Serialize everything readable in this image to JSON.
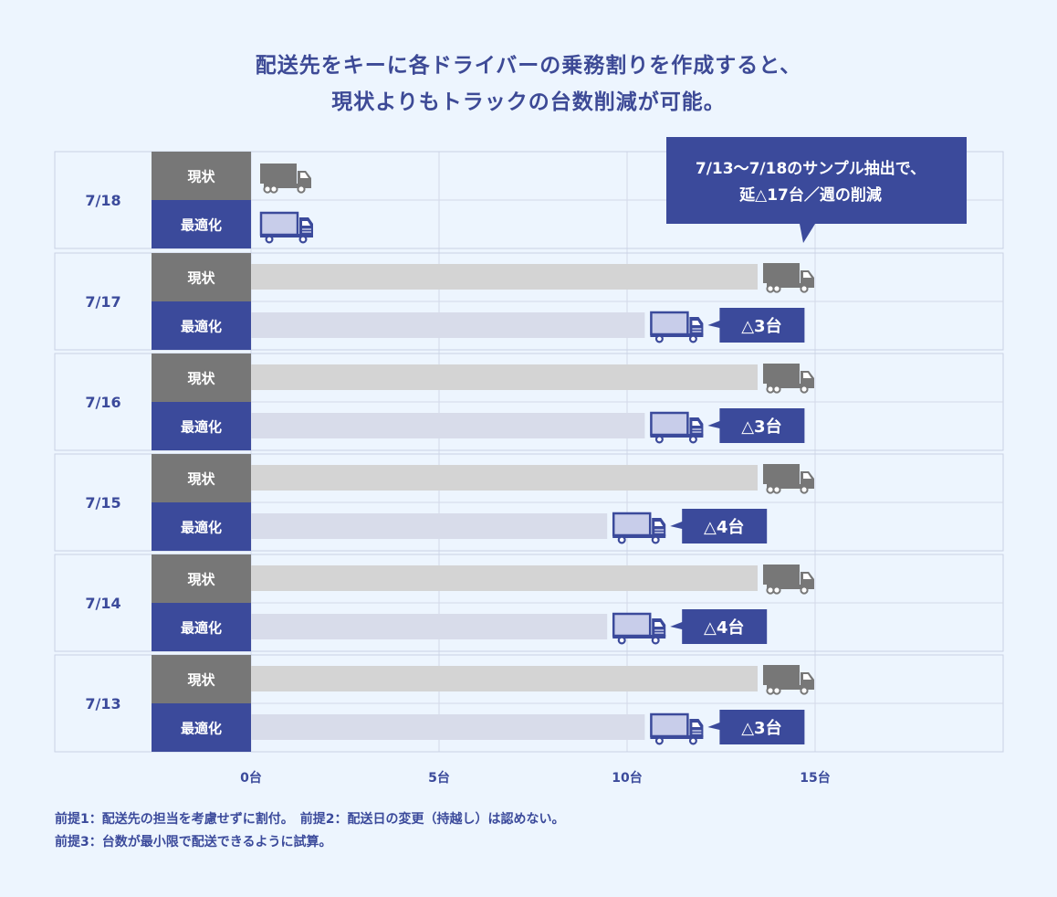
{
  "title": {
    "line1": "配送先をキーに各ドライバーの乗務割りを作成すると、",
    "line2": "現状よりもトラックの台数削減が可能。"
  },
  "chart_data": {
    "type": "bar",
    "orientation": "horizontal",
    "categories": [
      "7/18",
      "7/17",
      "7/16",
      "7/15",
      "7/14",
      "7/13"
    ],
    "series": [
      {
        "name": "現状",
        "color": "#777777",
        "bar_color": "#d4d4d4",
        "values": [
          null,
          15,
          15,
          15,
          15,
          15
        ]
      },
      {
        "name": "最適化",
        "color": "#3b4a9b",
        "bar_color": "#d8dcea",
        "values": [
          null,
          12,
          12,
          11,
          11,
          12
        ]
      }
    ],
    "deltas": [
      "",
      "△3台",
      "△3台",
      "△4台",
      "△4台",
      "△3台"
    ],
    "xlim": [
      0,
      20
    ],
    "xticks": [
      0,
      5,
      10,
      15
    ],
    "xtick_labels": [
      "0台",
      "5台",
      "10台",
      "15台"
    ],
    "grid": true,
    "annotation": {
      "line1": "7/13〜7/18のサンプル抽出で、",
      "line2": "延△17台／週の削減"
    }
  },
  "notes": {
    "line1": "前提1：配送先の担当を考慮せずに割付。　前提2：配送日の変更（持越し）は認めない。",
    "line2": "前提3：台数が最小限で配送できるように試算。"
  }
}
